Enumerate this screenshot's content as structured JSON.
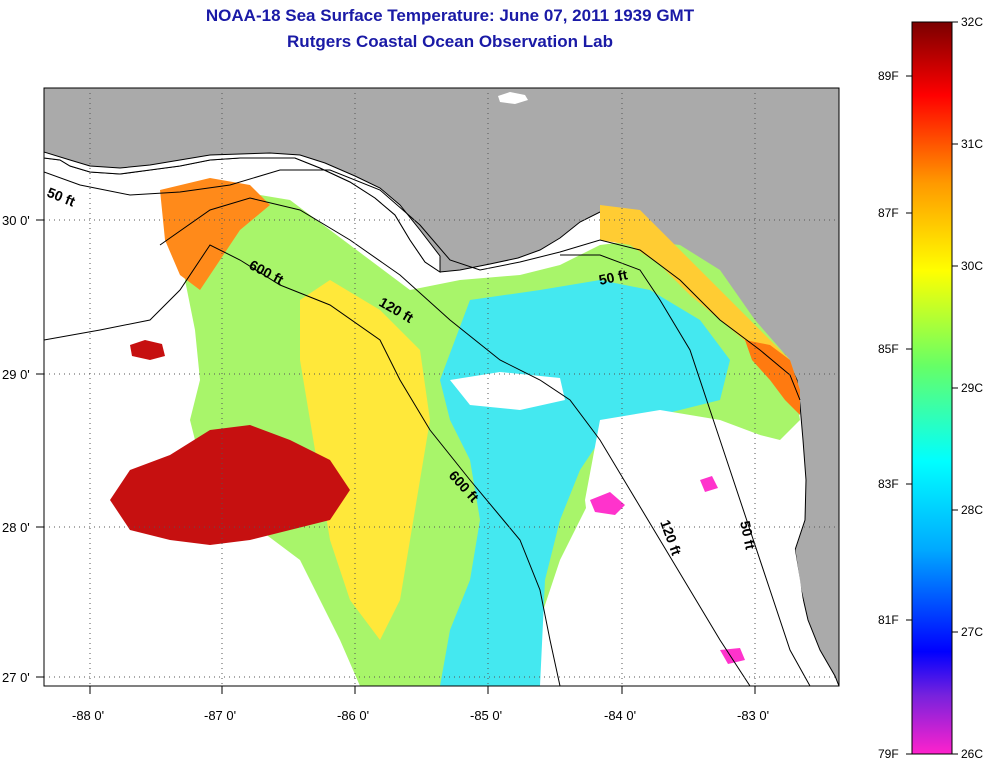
{
  "title": "NOAA-18 Sea Surface Temperature:  June 07, 2011 1939 GMT",
  "subtitle": "Rutgers Coastal Ocean Observation Lab",
  "map": {
    "lon_ticks": [
      "-88 0'",
      "-87 0'",
      "-86 0'",
      "-85 0'",
      "-84 0'",
      "-83 0'"
    ],
    "lat_ticks": [
      "30 0'",
      "29 0'",
      "28 0'",
      "27 0'"
    ],
    "contour_labels": [
      "50 ft",
      "600 ft",
      "120 ft",
      "50 ft",
      "600 ft",
      "120 ft",
      "50 ft"
    ],
    "colors": {
      "land": "#aaaaaa",
      "no_data": "#ffffff",
      "coastline": "#000000"
    }
  },
  "colorbar": {
    "celsius": [
      "32C",
      "31C",
      "30C",
      "29C",
      "28C",
      "27C",
      "26C"
    ],
    "fahrenheit": [
      "89F",
      "87F",
      "85F",
      "83F",
      "81F",
      "79F"
    ],
    "stops": [
      "#ff22cc",
      "#7722dd",
      "#0000ff",
      "#00aaff",
      "#00ffff",
      "#66ff66",
      "#ffff00",
      "#ff9900",
      "#ff0000",
      "#7a0000"
    ]
  }
}
